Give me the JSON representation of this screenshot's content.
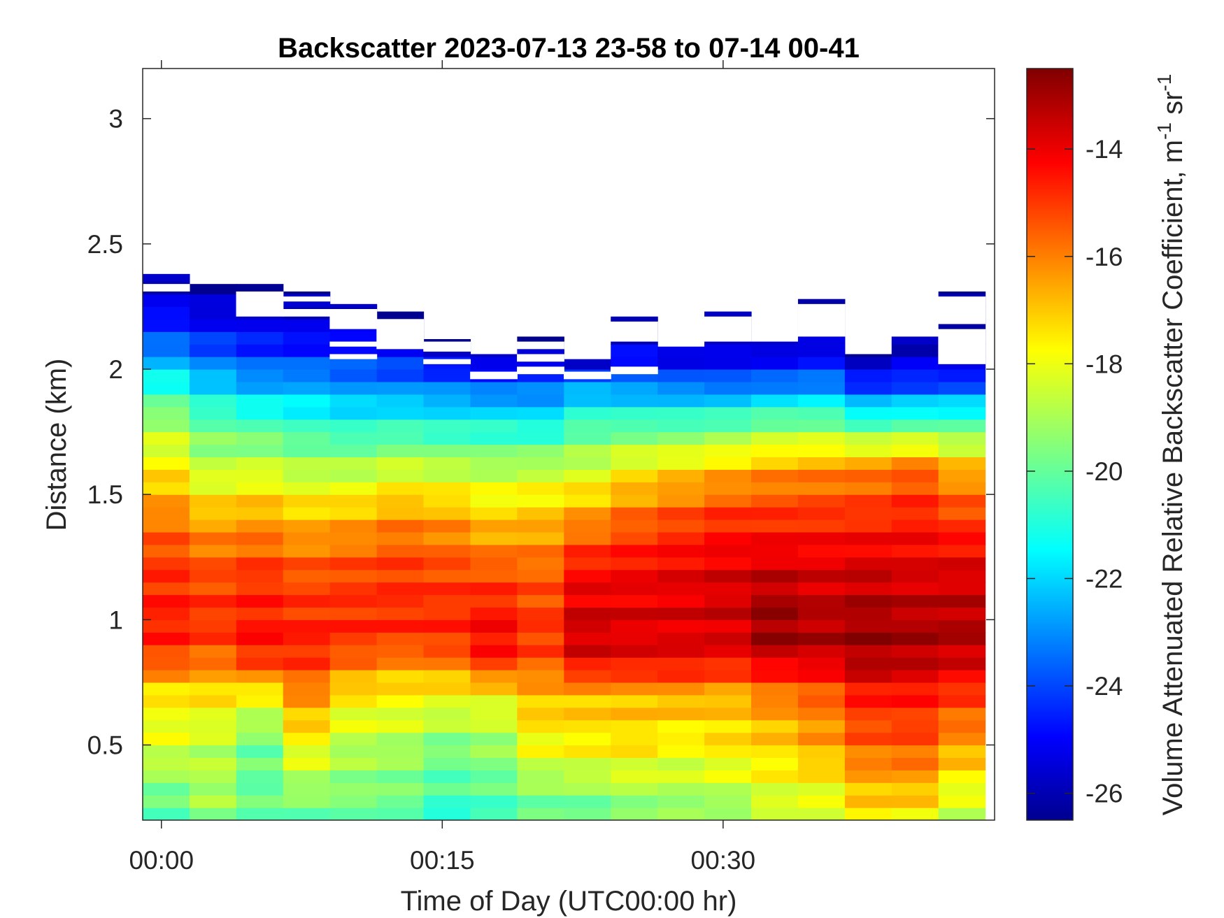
{
  "chart_data": {
    "type": "heatmap",
    "title": "Backscatter 2023-07-13 23-58 to 07-14 00-41",
    "xlabel": "Time of Day (UTC00:00 hr)",
    "ylabel": "Distance (km)",
    "colorbar_label": "Volume Attenuated Relative Backscatter Coefficient, m",
    "colorbar_label_unit_tail": " sr",
    "colorbar_label_superscript": "-1",
    "colormap": "jet",
    "x_ticks": [
      {
        "value_min": 0,
        "label": "00:00"
      },
      {
        "value_min": 15,
        "label": "00:15"
      },
      {
        "value_min": 30,
        "label": "00:30"
      }
    ],
    "y_ticks": [
      {
        "value": 0.5,
        "label": "0.5"
      },
      {
        "value": 1.0,
        "label": "1"
      },
      {
        "value": 1.5,
        "label": "1.5"
      },
      {
        "value": 2.0,
        "label": "2"
      },
      {
        "value": 2.5,
        "label": "2.5"
      },
      {
        "value": 3.0,
        "label": "3"
      }
    ],
    "colorbar_ticks": [
      {
        "value": -14,
        "label": "-14"
      },
      {
        "value": -16,
        "label": "-16"
      },
      {
        "value": -18,
        "label": "-18"
      },
      {
        "value": -20,
        "label": "-20"
      },
      {
        "value": -22,
        "label": "-22"
      },
      {
        "value": -24,
        "label": "-24"
      },
      {
        "value": -26,
        "label": "-26"
      }
    ],
    "xlim_min": [
      -1,
      44.5
    ],
    "ylim_km": [
      0.2,
      3.2
    ],
    "clim": [
      -26.5,
      -12.5
    ],
    "columns_start_min": [
      -1,
      1.5,
      4,
      6.5,
      9,
      11.5,
      14,
      16.5,
      19,
      21.5,
      24,
      26.5,
      29,
      31.5,
      34,
      36.5,
      39,
      41.5
    ],
    "column_width_min": 2.5,
    "range_gate_km": 0.05,
    "top_km": [
      2.38,
      2.34,
      2.34,
      2.31,
      2.26,
      2.23,
      2.12,
      2.06,
      2.13,
      2.04,
      2.21,
      2.09,
      2.23,
      2.11,
      2.28,
      2.06,
      2.13,
      2.31
    ],
    "profiles": [
      {
        "z": [
          0.2,
          0.3,
          0.5,
          0.7,
          0.8,
          0.9,
          1.0,
          1.2,
          1.4,
          1.6,
          1.8,
          1.95,
          2.1,
          2.25,
          2.38
        ],
        "v": [
          -20.5,
          -19.8,
          -18.2,
          -17.6,
          -15.8,
          -14.8,
          -14.6,
          -14.9,
          -15.9,
          -17.5,
          -19.2,
          -21.2,
          -23.6,
          -25.2,
          -26.2
        ]
      },
      {
        "z": [
          0.2,
          0.3,
          0.5,
          0.7,
          0.8,
          0.9,
          1.0,
          1.2,
          1.4,
          1.6,
          1.8,
          1.95,
          2.1,
          2.25,
          2.34
        ],
        "v": [
          -19.5,
          -19.0,
          -18.7,
          -17.4,
          -16.2,
          -15.2,
          -14.9,
          -15.3,
          -16.6,
          -18.6,
          -20.2,
          -22.2,
          -24.2,
          -25.6,
          -26.2
        ]
      },
      {
        "z": [
          0.2,
          0.3,
          0.5,
          0.7,
          0.8,
          0.9,
          1.0,
          1.2,
          1.4,
          1.6,
          1.8,
          1.95,
          2.1,
          2.25,
          2.34
        ],
        "v": [
          -19.8,
          -20.0,
          -19.8,
          -17.8,
          -15.6,
          -14.4,
          -14.6,
          -15.0,
          -16.4,
          -18.4,
          -20.6,
          -22.8,
          -24.6,
          -25.6,
          -26.2
        ]
      },
      {
        "z": [
          0.2,
          0.3,
          0.5,
          0.7,
          0.8,
          0.9,
          1.0,
          1.2,
          1.4,
          1.6,
          1.8,
          1.95,
          2.1,
          2.25,
          2.31
        ],
        "v": [
          -20.0,
          -19.4,
          -17.8,
          -16.2,
          -15.3,
          -14.6,
          -14.8,
          -15.4,
          -16.8,
          -18.8,
          -21.0,
          -22.8,
          -24.8,
          -25.8,
          -26.3
        ]
      },
      {
        "z": [
          0.2,
          0.3,
          0.5,
          0.7,
          0.8,
          0.9,
          1.0,
          1.2,
          1.4,
          1.6,
          1.8,
          1.95,
          2.1,
          2.25,
          2.26
        ],
        "v": [
          -19.8,
          -19.6,
          -18.8,
          -17.4,
          -16.2,
          -15.0,
          -14.8,
          -15.2,
          -16.6,
          -18.8,
          -21.3,
          -23.2,
          -24.8,
          -25.8,
          -26.2
        ]
      },
      {
        "z": [
          0.2,
          0.3,
          0.5,
          0.7,
          0.8,
          0.9,
          1.0,
          1.2,
          1.4,
          1.6,
          1.8,
          1.95,
          2.1,
          2.2,
          2.23
        ],
        "v": [
          -20.0,
          -19.8,
          -19.0,
          -17.6,
          -16.6,
          -15.2,
          -14.8,
          -15.0,
          -16.2,
          -18.4,
          -21.2,
          -23.4,
          -25.2,
          -26.0,
          -26.3
        ]
      },
      {
        "z": [
          0.2,
          0.3,
          0.5,
          0.7,
          0.8,
          0.9,
          1.0,
          1.2,
          1.4,
          1.6,
          1.8,
          1.95,
          2.05,
          2.12
        ],
        "v": [
          -21.0,
          -20.4,
          -19.6,
          -17.8,
          -16.4,
          -15.0,
          -14.8,
          -15.2,
          -16.4,
          -18.6,
          -21.4,
          -23.6,
          -25.4,
          -26.2
        ]
      },
      {
        "z": [
          0.2,
          0.3,
          0.5,
          0.7,
          0.8,
          0.9,
          1.0,
          1.2,
          1.4,
          1.6,
          1.8,
          1.95,
          2.06
        ],
        "v": [
          -20.6,
          -20.2,
          -19.2,
          -17.8,
          -15.4,
          -14.2,
          -14.4,
          -15.4,
          -17.0,
          -18.8,
          -21.4,
          -24.0,
          -26.0
        ]
      },
      {
        "z": [
          0.2,
          0.3,
          0.5,
          0.7,
          0.8,
          0.9,
          1.0,
          1.2,
          1.4,
          1.6,
          1.8,
          1.95,
          2.05,
          2.13
        ],
        "v": [
          -20.0,
          -19.6,
          -17.8,
          -16.8,
          -15.8,
          -15.0,
          -15.0,
          -15.6,
          -16.8,
          -18.6,
          -21.6,
          -23.8,
          -25.6,
          -26.3
        ]
      },
      {
        "z": [
          0.2,
          0.3,
          0.5,
          0.7,
          0.8,
          0.9,
          1.0,
          1.2,
          1.4,
          1.6,
          1.8,
          1.95,
          2.04
        ],
        "v": [
          -20.4,
          -19.4,
          -17.6,
          -16.8,
          -14.6,
          -13.6,
          -13.6,
          -14.4,
          -16.2,
          -18.4,
          -20.6,
          -23.2,
          -26.2
        ]
      },
      {
        "z": [
          0.2,
          0.3,
          0.5,
          0.7,
          0.8,
          0.9,
          1.0,
          1.2,
          1.4,
          1.6,
          1.8,
          1.95,
          2.1,
          2.21
        ],
        "v": [
          -20.0,
          -19.0,
          -17.4,
          -16.8,
          -14.6,
          -13.8,
          -13.8,
          -14.2,
          -15.6,
          -17.6,
          -20.6,
          -23.4,
          -25.6,
          -26.3
        ]
      },
      {
        "z": [
          0.2,
          0.3,
          0.5,
          0.7,
          0.8,
          0.9,
          1.0,
          1.2,
          1.4,
          1.6,
          1.8,
          1.95,
          2.09
        ],
        "v": [
          -19.6,
          -19.0,
          -17.8,
          -16.6,
          -14.6,
          -13.8,
          -13.8,
          -14.0,
          -15.2,
          -17.2,
          -20.6,
          -23.6,
          -26.0
        ]
      },
      {
        "z": [
          0.2,
          0.3,
          0.5,
          0.7,
          0.8,
          0.9,
          1.0,
          1.2,
          1.4,
          1.6,
          1.8,
          1.95,
          2.1,
          2.23
        ],
        "v": [
          -19.8,
          -18.8,
          -17.4,
          -16.8,
          -14.8,
          -13.8,
          -13.6,
          -13.8,
          -14.8,
          -16.8,
          -20.4,
          -23.8,
          -25.8,
          -26.3
        ]
      },
      {
        "z": [
          0.2,
          0.3,
          0.5,
          0.7,
          0.8,
          0.9,
          1.0,
          1.2,
          1.4,
          1.6,
          1.8,
          1.95,
          2.11
        ],
        "v": [
          -18.8,
          -18.2,
          -17.2,
          -16.0,
          -14.4,
          -13.0,
          -12.8,
          -13.6,
          -14.8,
          -16.4,
          -20.0,
          -23.6,
          -26.0
        ]
      },
      {
        "z": [
          0.2,
          0.3,
          0.5,
          0.7,
          0.8,
          0.9,
          1.0,
          1.2,
          1.4,
          1.6,
          1.8,
          1.95,
          2.1,
          2.28
        ],
        "v": [
          -18.6,
          -18.0,
          -16.6,
          -15.6,
          -14.2,
          -13.2,
          -13.2,
          -13.8,
          -14.8,
          -16.2,
          -20.0,
          -23.4,
          -25.6,
          -26.3
        ]
      },
      {
        "z": [
          0.2,
          0.3,
          0.5,
          0.7,
          0.8,
          0.9,
          1.0,
          1.2,
          1.4,
          1.6,
          1.8,
          1.95,
          2.06
        ],
        "v": [
          -17.6,
          -17.0,
          -15.6,
          -14.6,
          -13.4,
          -12.9,
          -13.0,
          -13.6,
          -14.8,
          -16.0,
          -20.8,
          -24.6,
          -26.3
        ]
      },
      {
        "z": [
          0.2,
          0.3,
          0.5,
          0.7,
          0.8,
          0.9,
          1.0,
          1.2,
          1.4,
          1.6,
          1.8,
          1.95,
          2.13
        ],
        "v": [
          -17.8,
          -17.0,
          -15.4,
          -14.6,
          -13.6,
          -13.0,
          -13.2,
          -13.8,
          -14.6,
          -15.6,
          -20.6,
          -24.4,
          -26.3
        ]
      },
      {
        "z": [
          0.2,
          0.3,
          0.5,
          0.7,
          0.8,
          0.9,
          1.0,
          1.2,
          1.4,
          1.6,
          1.8,
          1.95,
          2.05,
          2.31
        ],
        "v": [
          -18.6,
          -18.2,
          -16.4,
          -15.0,
          -14.0,
          -13.2,
          -13.2,
          -13.8,
          -15.0,
          -16.6,
          -20.6,
          -24.2,
          -26.0,
          -26.4
        ]
      }
    ],
    "gaps_km": [
      [
        [
          2.31,
          2.34
        ]
      ],
      [],
      [
        [
          2.21,
          2.31
        ]
      ],
      [
        [
          2.21,
          2.24
        ],
        [
          2.27,
          2.29
        ]
      ],
      [
        [
          2.16,
          2.24
        ],
        [
          2.09,
          2.11
        ],
        [
          2.04,
          2.06
        ]
      ],
      [
        [
          2.08,
          2.2
        ]
      ],
      [
        [
          2.07,
          2.11
        ],
        [
          2.02,
          2.04
        ]
      ],
      [
        [
          1.96,
          1.99
        ]
      ],
      [
        [
          2.08,
          2.11
        ],
        [
          2.03,
          2.06
        ],
        [
          1.98,
          2.01
        ]
      ],
      [
        [
          1.96,
          1.99
        ]
      ],
      [
        [
          2.11,
          2.19
        ],
        [
          1.98,
          2.01
        ]
      ],
      [],
      [
        [
          2.11,
          2.21
        ]
      ],
      [],
      [
        [
          2.13,
          2.26
        ]
      ],
      [],
      [],
      [
        [
          2.02,
          2.16
        ],
        [
          2.18,
          2.29
        ]
      ]
    ]
  }
}
